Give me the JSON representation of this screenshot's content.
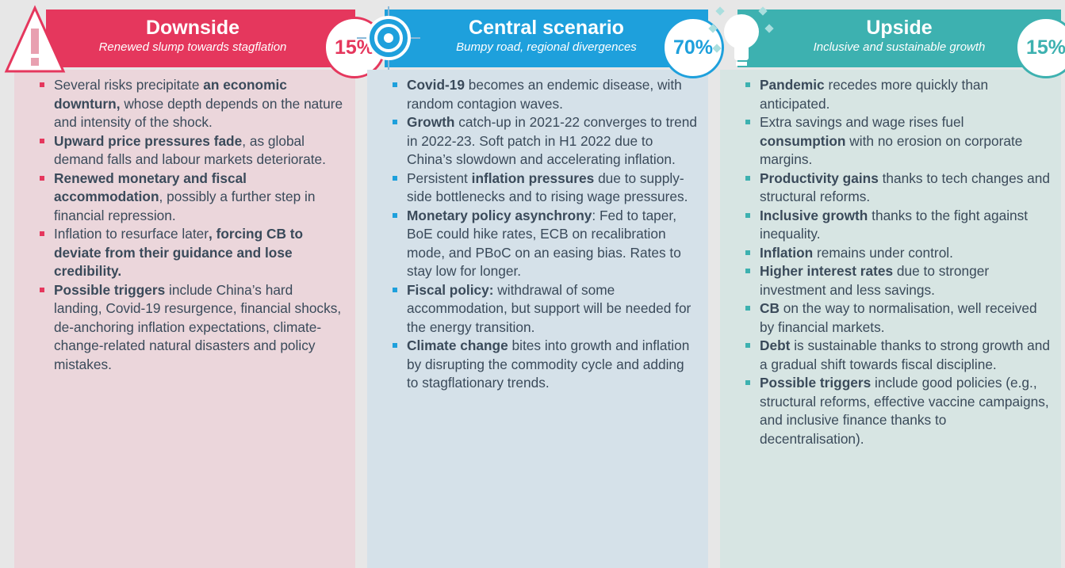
{
  "columns": [
    {
      "title": "Downside",
      "subtitle": "Renewed slump towards stagflation",
      "percent": "15%",
      "bullets": [
        [
          {
            "text": "Several risks precipitate ",
            "bold": false
          },
          {
            "text": "an economic downturn,",
            "bold": true
          },
          {
            "text": " whose depth depends on the nature and intensity of the shock.",
            "bold": false
          }
        ],
        [
          {
            "text": "Upward price pressures fade",
            "bold": true
          },
          {
            "text": ", as global demand falls and labour markets deteriorate.",
            "bold": false
          }
        ],
        [
          {
            "text": "Renewed monetary and fiscal accommodation",
            "bold": true
          },
          {
            "text": ", possibly a further step in financial repression.",
            "bold": false
          }
        ],
        [
          {
            "text": "Inflation to resurface later",
            "bold": false
          },
          {
            "text": ", forcing CB to deviate from their guidance and lose credibility.",
            "bold": true
          }
        ],
        [
          {
            "text": "Possible triggers",
            "bold": true
          },
          {
            "text": " include China’s hard landing, Covid-19 resurgence, financial shocks, de-anchoring inflation expectations, climate-change-related natural disasters and policy mistakes.",
            "bold": false
          }
        ]
      ]
    },
    {
      "title": "Central scenario",
      "subtitle": "Bumpy road, regional divergences",
      "percent": "70%",
      "bullets": [
        [
          {
            "text": "Covid-19",
            "bold": true
          },
          {
            "text": " becomes an endemic disease, with random contagion waves.",
            "bold": false
          }
        ],
        [
          {
            "text": "Growth",
            "bold": true
          },
          {
            "text": " catch-up in 2021-22 converges to trend in 2022-23. Soft patch in H1 2022 due to China’s slowdown and accelerating inflation.",
            "bold": false
          }
        ],
        [
          {
            "text": "Persistent ",
            "bold": false
          },
          {
            "text": "inflation pressures",
            "bold": true
          },
          {
            "text": " due to supply-side bottlenecks and to rising wage pressures.",
            "bold": false
          }
        ],
        [
          {
            "text": "Monetary policy asynchrony",
            "bold": true
          },
          {
            "text": ": Fed to taper, BoE could hike rates, ECB on recalibration mode, and PBoC on an easing bias. Rates to stay low for longer.",
            "bold": false
          }
        ],
        [
          {
            "text": "Fiscal policy:",
            "bold": true
          },
          {
            "text": " withdrawal of some accommodation, but support will be needed for the energy transition.",
            "bold": false
          }
        ],
        [
          {
            "text": "Climate change",
            "bold": true
          },
          {
            "text": " bites into growth and inflation by disrupting the commodity cycle and adding to stagflationary trends.",
            "bold": false
          }
        ]
      ]
    },
    {
      "title": "Upside",
      "subtitle": "Inclusive and sustainable growth",
      "percent": "15%",
      "bullets": [
        [
          {
            "text": "Pandemic",
            "bold": true
          },
          {
            "text": " recedes more quickly than anticipated.",
            "bold": false
          }
        ],
        [
          {
            "text": "Extra savings and wage rises fuel ",
            "bold": false
          },
          {
            "text": "consumption",
            "bold": true
          },
          {
            "text": " with no erosion on corporate margins.",
            "bold": false
          }
        ],
        [
          {
            "text": "Productivity gains",
            "bold": true
          },
          {
            "text": " thanks to tech changes and structural reforms.",
            "bold": false
          }
        ],
        [
          {
            "text": "Inclusive growth",
            "bold": true
          },
          {
            "text": " thanks to the fight against inequality.",
            "bold": false
          }
        ],
        [
          {
            "text": "Inflation",
            "bold": true
          },
          {
            "text": " remains under control.",
            "bold": false
          }
        ],
        [
          {
            "text": "Higher interest rates",
            "bold": true
          },
          {
            "text": " due to stronger investment and less savings.",
            "bold": false
          }
        ],
        [
          {
            "text": "CB",
            "bold": true
          },
          {
            "text": " on the way to normalisation, well received by financial markets.",
            "bold": false
          }
        ],
        [
          {
            "text": "Debt",
            "bold": true
          },
          {
            "text": " is sustainable thanks to strong growth and a gradual shift towards fiscal discipline.",
            "bold": false
          }
        ],
        [
          {
            "text": "Possible triggers",
            "bold": true
          },
          {
            "text": " include good policies (e.g., structural reforms, effective vaccine campaigns, and inclusive finance thanks to decentralisation).",
            "bold": false
          }
        ]
      ]
    }
  ]
}
